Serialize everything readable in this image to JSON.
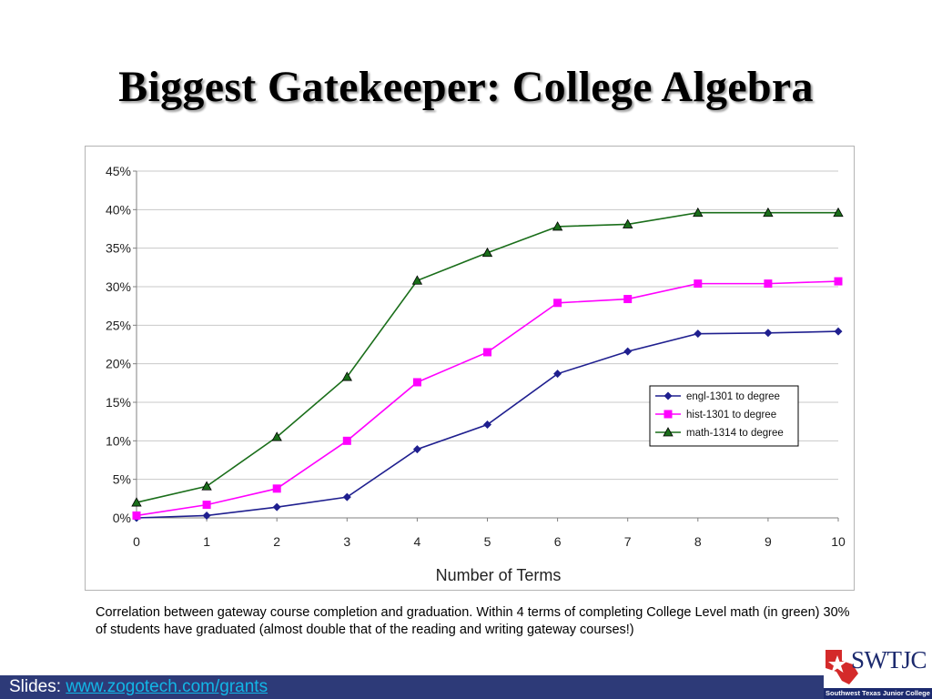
{
  "slide": {
    "title": "Biggest Gatekeeper: College Algebra",
    "caption": "Correlation between gateway course completion and graduation.  Within 4 terms of completing College Level math (in green)  30% of students have graduated (almost double that of the reading and writing gateway courses!)",
    "footer_label": "Slides: ",
    "footer_link": "www.zogotech.com/grants",
    "logo_text": "SWTJC",
    "logo_subtext": "Southwest Texas Junior College"
  },
  "colors": {
    "footer_bar": "#2d3a78",
    "link": "#12b6e6",
    "logo_navy": "#1c2a6e",
    "logo_red": "#d42a2a"
  },
  "chart_data": {
    "type": "line",
    "xlabel": "Number of Terms",
    "ylabel": "",
    "x": [
      0,
      1,
      2,
      3,
      4,
      5,
      6,
      7,
      8,
      9,
      10
    ],
    "y_ticks": [
      "0%",
      "5%",
      "10%",
      "15%",
      "20%",
      "25%",
      "30%",
      "35%",
      "40%",
      "45%"
    ],
    "ylim": [
      0,
      45
    ],
    "grid": "horizontal",
    "legend_position": "right",
    "series": [
      {
        "name": "engl-1301 to degree",
        "color": "#1f1f8f",
        "marker": "diamond",
        "values": [
          0.0,
          0.3,
          1.4,
          2.7,
          8.9,
          12.1,
          18.7,
          21.6,
          23.9,
          24.0,
          24.2
        ]
      },
      {
        "name": "hist-1301 to degree",
        "color": "#ff00ff",
        "marker": "square",
        "values": [
          0.3,
          1.7,
          3.8,
          10.0,
          17.6,
          21.5,
          27.9,
          28.4,
          30.4,
          30.4,
          30.7
        ]
      },
      {
        "name": "math-1314 to degree",
        "color": "#1a6e1a",
        "marker": "triangle",
        "values": [
          2.0,
          4.1,
          10.5,
          18.3,
          30.8,
          34.4,
          37.8,
          38.1,
          39.6,
          39.6,
          39.6
        ]
      }
    ]
  }
}
